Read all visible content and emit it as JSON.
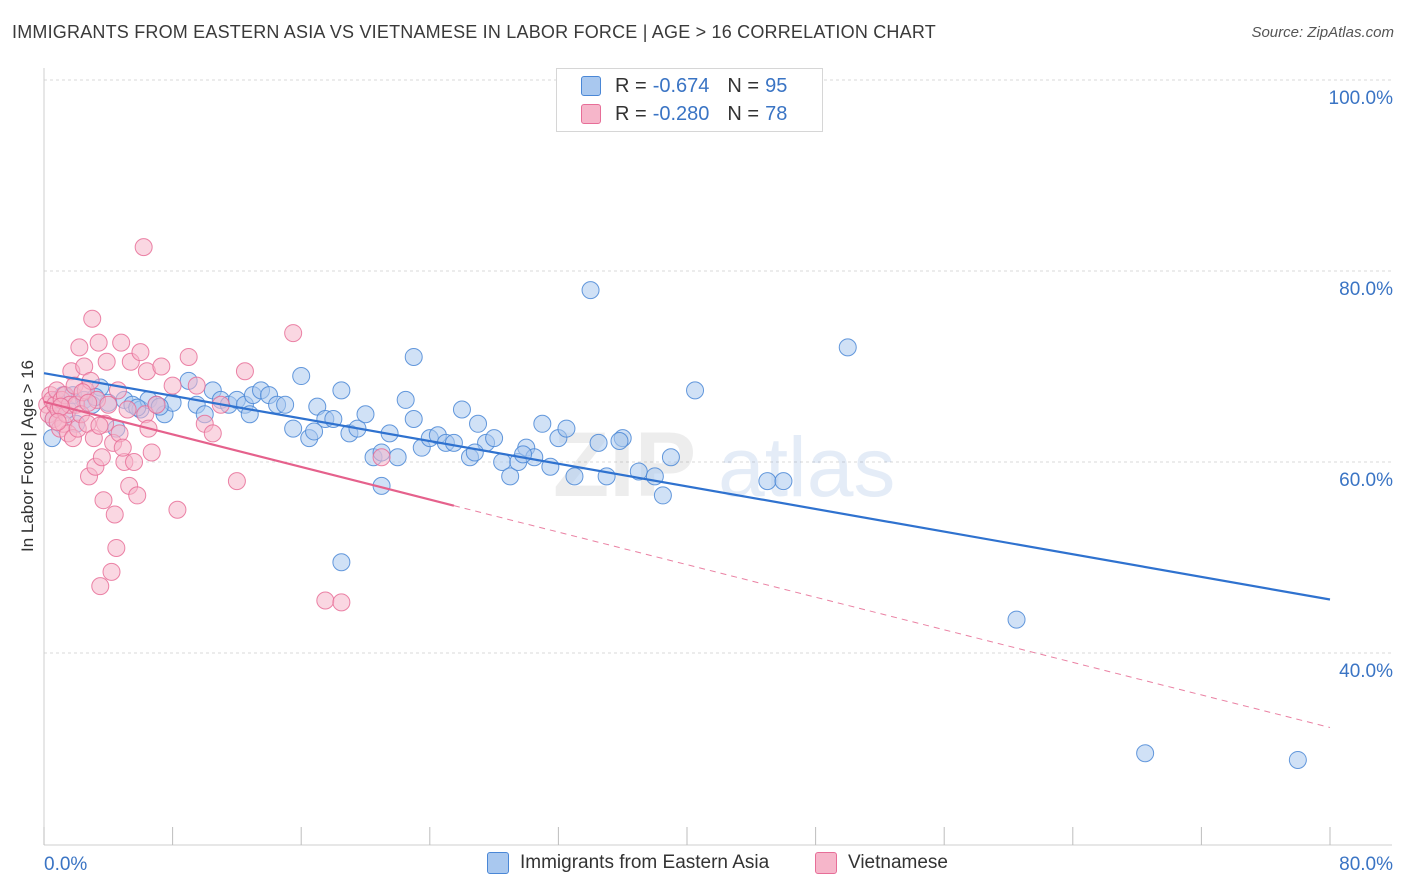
{
  "title": "IMMIGRANTS FROM EASTERN ASIA VS VIETNAMESE IN LABOR FORCE | AGE > 16 CORRELATION CHART",
  "source": "Source: ZipAtlas.com",
  "watermark": {
    "zip": "ZIP",
    "atlas": "atlas"
  },
  "colors": {
    "blue_fill": "#a9c8ef",
    "blue_stroke": "#4a87d6",
    "blue_line": "#2f72cf",
    "pink_fill": "#f6b6ca",
    "pink_stroke": "#e76e98",
    "pink_line": "#e5618c",
    "tick_label": "#3a74c4",
    "grid": "#d8d8d8"
  },
  "legend": {
    "r_label": "R =",
    "n_label": "N =",
    "blue": {
      "r": "-0.674",
      "n": "95"
    },
    "pink": {
      "r": "-0.280",
      "n": "78"
    }
  },
  "chart_data": {
    "type": "scatter",
    "ylabel": "In Labor Force | Age > 16",
    "xlim": [
      0,
      80
    ],
    "ylim": [
      20,
      100
    ],
    "x_tick_labels": [
      "0.0%",
      "80.0%"
    ],
    "y_tick_labels": [
      "100.0%",
      "80.0%",
      "60.0%",
      "40.0%"
    ],
    "y_gridlines": [
      100,
      80,
      60,
      40
    ],
    "series": [
      {
        "name": "Immigrants from Eastern Asia",
        "color": "blue",
        "trend": {
          "x0": 0,
          "y0": 69.3,
          "x1": 80,
          "y1": 45.6,
          "dashed_from": null
        },
        "points": [
          [
            0.5,
            62.5
          ],
          [
            0.6,
            64.5
          ],
          [
            0.8,
            66.5
          ],
          [
            1.0,
            66.0
          ],
          [
            1.2,
            67.0
          ],
          [
            1.5,
            65.5
          ],
          [
            1.8,
            67.0
          ],
          [
            2.0,
            64.0
          ],
          [
            2.5,
            66.5
          ],
          [
            3.0,
            66.0
          ],
          [
            3.5,
            67.8
          ],
          [
            4.0,
            66.2
          ],
          [
            4.5,
            63.5
          ],
          [
            5.0,
            66.5
          ],
          [
            5.5,
            66.0
          ],
          [
            6.0,
            65.5
          ],
          [
            6.5,
            66.5
          ],
          [
            7.0,
            66.0
          ],
          [
            7.5,
            65.0
          ],
          [
            8.0,
            66.2
          ],
          [
            9.0,
            68.5
          ],
          [
            9.5,
            66.0
          ],
          [
            10.0,
            65.0
          ],
          [
            10.5,
            67.5
          ],
          [
            11.0,
            66.5
          ],
          [
            11.5,
            66.0
          ],
          [
            12.0,
            66.5
          ],
          [
            12.5,
            66.0
          ],
          [
            13.0,
            67.0
          ],
          [
            13.5,
            67.5
          ],
          [
            14.0,
            67.0
          ],
          [
            14.5,
            66.0
          ],
          [
            15.0,
            66.0
          ],
          [
            15.5,
            63.5
          ],
          [
            16.0,
            69.0
          ],
          [
            16.5,
            62.5
          ],
          [
            17.0,
            65.8
          ],
          [
            17.5,
            64.5
          ],
          [
            18.0,
            64.5
          ],
          [
            18.5,
            67.5
          ],
          [
            19.0,
            63.0
          ],
          [
            19.5,
            63.5
          ],
          [
            20.0,
            65.0
          ],
          [
            20.5,
            60.5
          ],
          [
            21.0,
            57.5
          ],
          [
            21.5,
            63.0
          ],
          [
            22.0,
            60.5
          ],
          [
            22.5,
            66.5
          ],
          [
            23.0,
            64.5
          ],
          [
            23.5,
            61.5
          ],
          [
            24.0,
            62.5
          ],
          [
            24.5,
            62.8
          ],
          [
            25.0,
            62.0
          ],
          [
            26.0,
            65.5
          ],
          [
            26.5,
            60.5
          ],
          [
            27.0,
            64.0
          ],
          [
            27.5,
            62.0
          ],
          [
            28.0,
            62.5
          ],
          [
            28.5,
            60.0
          ],
          [
            29.0,
            58.5
          ],
          [
            29.5,
            60.0
          ],
          [
            30.0,
            61.5
          ],
          [
            30.5,
            60.5
          ],
          [
            31.0,
            64.0
          ],
          [
            31.5,
            59.5
          ],
          [
            32.0,
            62.5
          ],
          [
            32.5,
            63.5
          ],
          [
            33.0,
            58.5
          ],
          [
            34.0,
            78.0
          ],
          [
            34.5,
            62.0
          ],
          [
            35.0,
            58.5
          ],
          [
            36.0,
            62.5
          ],
          [
            37.0,
            59.0
          ],
          [
            38.0,
            58.5
          ],
          [
            38.5,
            56.5
          ],
          [
            39.0,
            60.5
          ],
          [
            40.5,
            67.5
          ],
          [
            45.0,
            58.0
          ],
          [
            46.0,
            58.0
          ],
          [
            50.0,
            72.0
          ],
          [
            60.5,
            43.5
          ],
          [
            68.5,
            29.5
          ],
          [
            78.0,
            28.8
          ],
          [
            18.5,
            49.5
          ],
          [
            23.0,
            71.0
          ],
          [
            21.0,
            61.0
          ],
          [
            25.5,
            62.0
          ],
          [
            7.2,
            65.8
          ],
          [
            12.8,
            65.0
          ],
          [
            3.2,
            66.8
          ],
          [
            5.8,
            65.7
          ],
          [
            16.8,
            63.2
          ],
          [
            26.8,
            61.0
          ],
          [
            29.8,
            60.8
          ],
          [
            35.8,
            62.2
          ]
        ]
      },
      {
        "name": "Vietnamese",
        "color": "pink",
        "trend": {
          "x0": 0,
          "y0": 66.3,
          "x1": 80,
          "y1": 32.2,
          "dashed_from": 25.5
        },
        "points": [
          [
            0.2,
            66.0
          ],
          [
            0.3,
            65.0
          ],
          [
            0.4,
            67.0
          ],
          [
            0.5,
            66.5
          ],
          [
            0.6,
            64.5
          ],
          [
            0.7,
            66.0
          ],
          [
            0.8,
            67.5
          ],
          [
            0.9,
            65.5
          ],
          [
            1.0,
            63.5
          ],
          [
            1.1,
            66.5
          ],
          [
            1.2,
            64.0
          ],
          [
            1.3,
            67.0
          ],
          [
            1.4,
            65.0
          ],
          [
            1.5,
            63.0
          ],
          [
            1.6,
            66.0
          ],
          [
            1.7,
            69.5
          ],
          [
            1.8,
            62.5
          ],
          [
            1.9,
            68.0
          ],
          [
            2.0,
            66.0
          ],
          [
            2.1,
            63.5
          ],
          [
            2.2,
            72.0
          ],
          [
            2.3,
            65.0
          ],
          [
            2.5,
            70.0
          ],
          [
            2.6,
            67.5
          ],
          [
            2.7,
            64.0
          ],
          [
            2.8,
            58.5
          ],
          [
            2.9,
            68.5
          ],
          [
            3.0,
            75.0
          ],
          [
            3.1,
            62.5
          ],
          [
            3.2,
            59.5
          ],
          [
            3.3,
            66.5
          ],
          [
            3.4,
            72.5
          ],
          [
            3.5,
            47.0
          ],
          [
            3.6,
            60.5
          ],
          [
            3.7,
            56.0
          ],
          [
            3.8,
            64.0
          ],
          [
            3.9,
            70.5
          ],
          [
            4.0,
            66.0
          ],
          [
            4.2,
            48.5
          ],
          [
            4.3,
            62.0
          ],
          [
            4.4,
            54.5
          ],
          [
            4.5,
            51.0
          ],
          [
            4.6,
            67.5
          ],
          [
            4.7,
            63.0
          ],
          [
            4.8,
            72.5
          ],
          [
            5.0,
            60.0
          ],
          [
            5.2,
            65.5
          ],
          [
            5.3,
            57.5
          ],
          [
            5.4,
            70.5
          ],
          [
            5.6,
            60.0
          ],
          [
            5.8,
            56.5
          ],
          [
            6.0,
            71.5
          ],
          [
            6.2,
            82.5
          ],
          [
            6.3,
            65.0
          ],
          [
            6.4,
            69.5
          ],
          [
            6.5,
            63.5
          ],
          [
            6.7,
            61.0
          ],
          [
            7.0,
            66.0
          ],
          [
            7.3,
            70.0
          ],
          [
            8.0,
            68.0
          ],
          [
            8.3,
            55.0
          ],
          [
            9.0,
            71.0
          ],
          [
            10.0,
            64.0
          ],
          [
            10.5,
            63.0
          ],
          [
            11.0,
            66.0
          ],
          [
            12.0,
            58.0
          ],
          [
            12.5,
            69.5
          ],
          [
            15.5,
            73.5
          ],
          [
            17.5,
            45.5
          ],
          [
            18.5,
            45.3
          ],
          [
            21.0,
            60.5
          ],
          [
            9.5,
            68.0
          ],
          [
            2.4,
            67.3
          ],
          [
            1.05,
            65.8
          ],
          [
            0.85,
            64.2
          ],
          [
            4.9,
            61.5
          ],
          [
            3.45,
            63.8
          ],
          [
            2.75,
            66.2
          ]
        ]
      }
    ]
  }
}
